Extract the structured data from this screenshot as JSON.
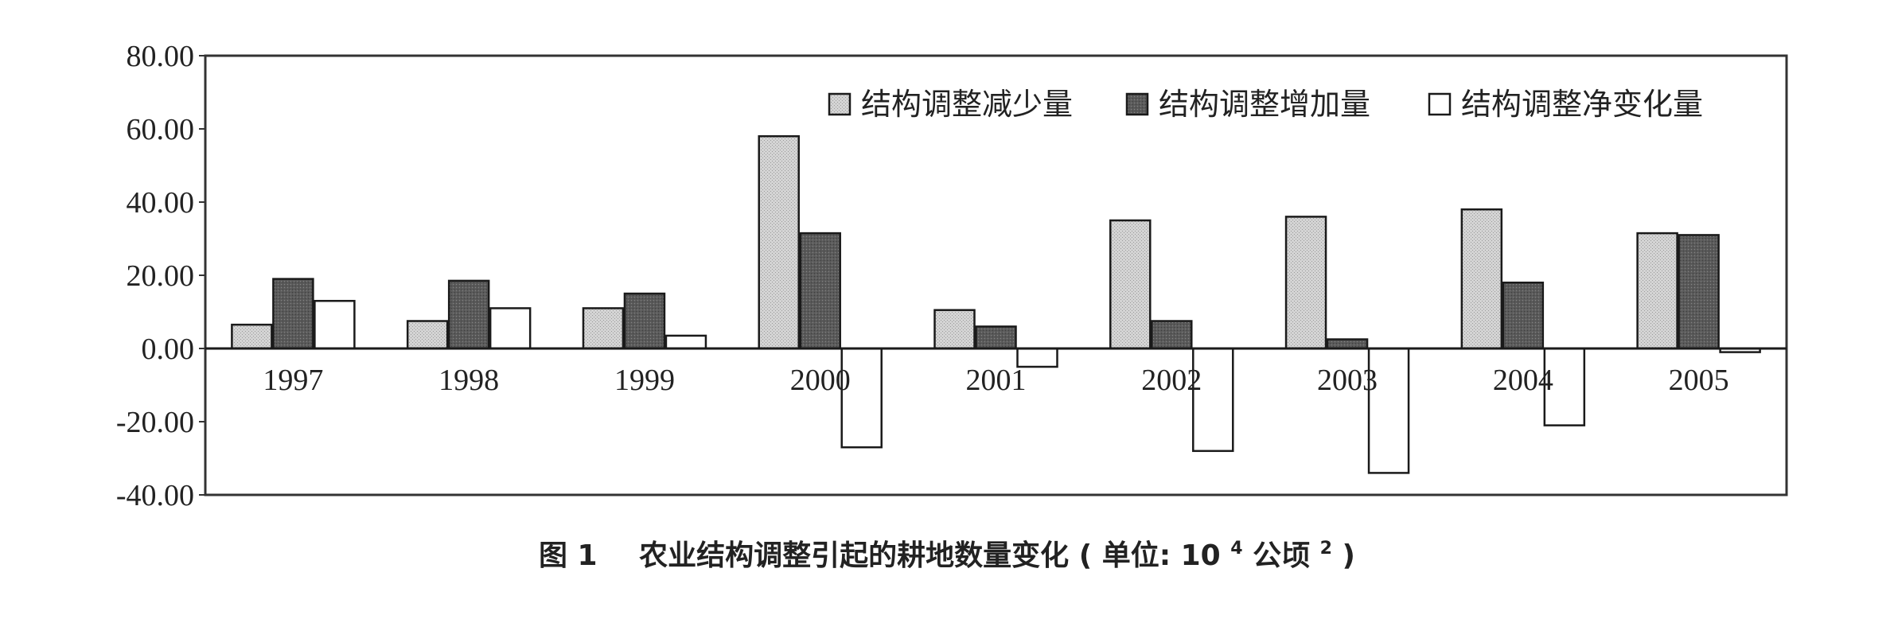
{
  "chart_data": {
    "type": "bar",
    "title": "图 1　农业结构调整引起的耕地数量变化 ( 单位: 10⁴ 公顷 ² )",
    "caption": {
      "figure_label": "图 1",
      "text": "农业结构调整引起的耕地数量变化",
      "unit_open": "( 单位: 10",
      "unit_exp": "4",
      "unit_mid": " 公顷 ",
      "unit_exp2": "2",
      "unit_close": " )"
    },
    "xlabel": "",
    "ylabel": "",
    "ylim": [
      -40,
      80
    ],
    "yticks": [
      80,
      60,
      40,
      20,
      0,
      -20,
      -40
    ],
    "ytick_labels": [
      "80.00",
      "60.00",
      "40.00",
      "20.00",
      "0.00",
      "-20.00",
      "-40.00"
    ],
    "grid": false,
    "legend_position": "top-right",
    "categories": [
      "1997",
      "1998",
      "1999",
      "2000",
      "2001",
      "2002",
      "2003",
      "2004",
      "2005"
    ],
    "series": [
      {
        "name": "结构调整减少量",
        "fill": "#d4d4d4",
        "values": [
          6.5,
          7.5,
          11,
          58,
          10.5,
          35,
          36,
          38,
          31.5
        ]
      },
      {
        "name": "结构调整增加量",
        "fill": "#5a5a5a",
        "values": [
          19,
          18.5,
          15,
          31.5,
          6,
          7.5,
          2.5,
          18,
          31
        ]
      },
      {
        "name": "结构调整净变化量",
        "fill": "#ffffff",
        "values": [
          13,
          11,
          3.5,
          -27,
          -5,
          -28,
          -34,
          -21,
          -1
        ]
      }
    ]
  }
}
